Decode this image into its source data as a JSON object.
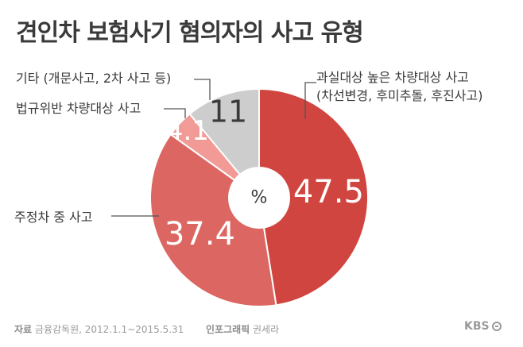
{
  "title": "견인차 보험사기 혐의자의 사고 유형",
  "chart_data": {
    "type": "pie",
    "center_label": "%",
    "slices": [
      {
        "label_lines": [
          "과실대상 높은 차량대상 사고",
          "(차선변경, 후미추돌, 후진사고)"
        ],
        "value": 47.5,
        "value_text": "47.5",
        "color": "#d0453f"
      },
      {
        "label_lines": [
          "주정차 중 사고"
        ],
        "value": 37.4,
        "value_text": "37.4",
        "color": "#dc6762"
      },
      {
        "label_lines": [
          "법규위반 차량대상 사고"
        ],
        "value": 4.1,
        "value_text": "4.1",
        "color": "#f19a96"
      },
      {
        "label_lines": [
          "기타 (개문사고, 2차 사고 등)"
        ],
        "value": 11,
        "value_text": "11",
        "color": "#cdcdcd"
      }
    ]
  },
  "footer": {
    "source_label": "자료",
    "source_text": "금융감독원, 2012.1.1~2015.5.31",
    "credit_label": "인포그래픽",
    "credit_text": "권세라"
  },
  "logo": {
    "text": "KBS"
  }
}
